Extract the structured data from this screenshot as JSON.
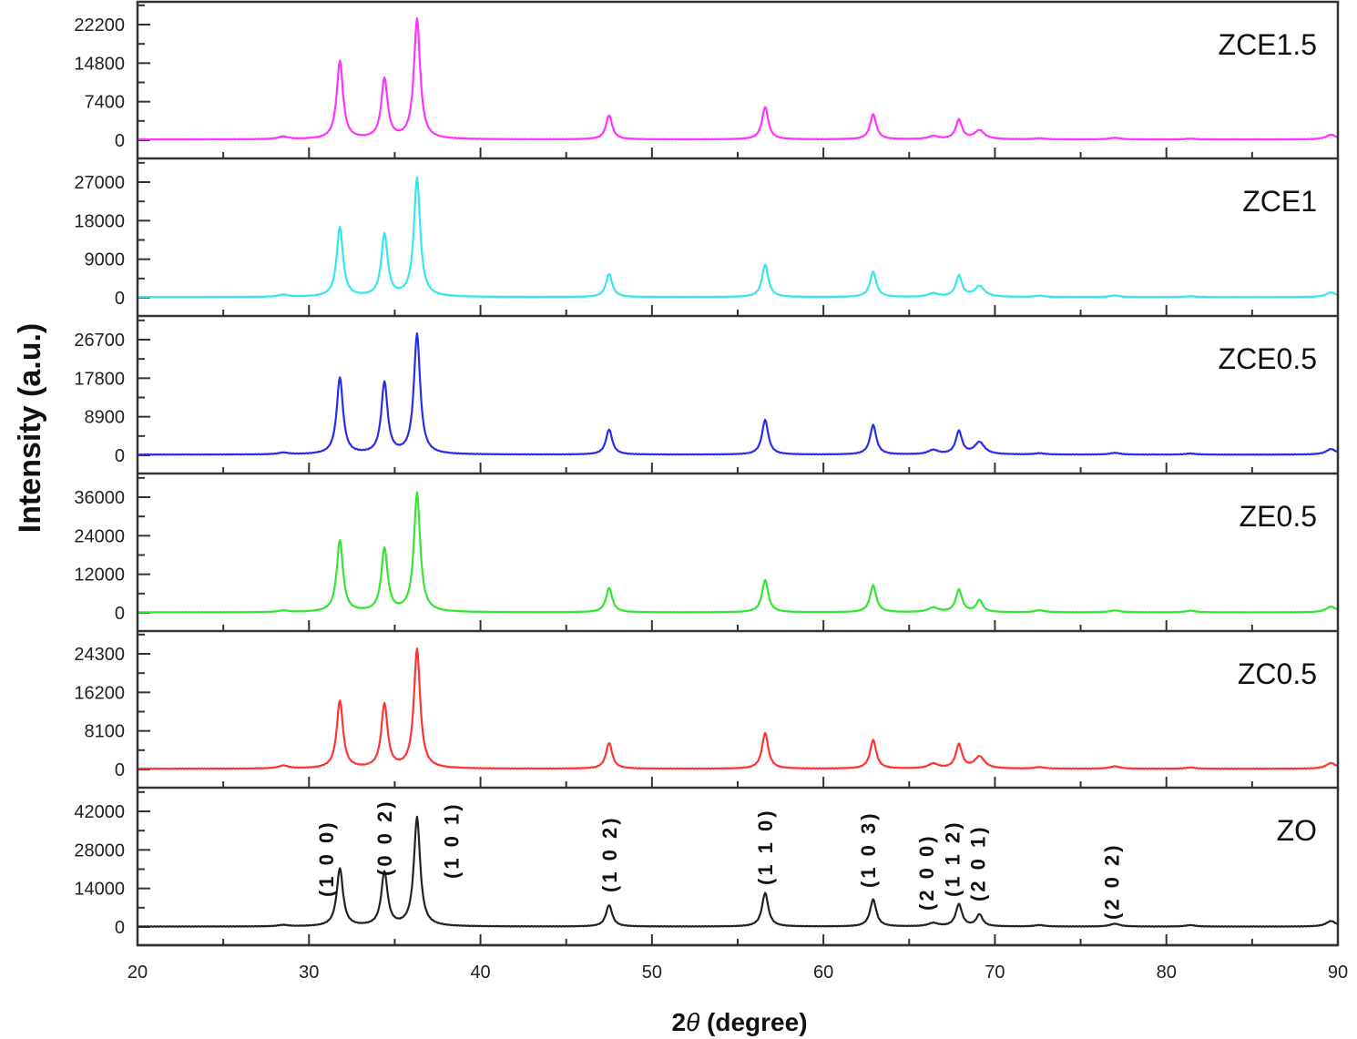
{
  "chart_data": {
    "type": "line",
    "title": "",
    "xlabel": "2θ (degree)",
    "ylabel": "Intensity (a.u.)",
    "xlim": [
      20,
      90
    ],
    "x_ticks": [
      20,
      30,
      40,
      50,
      60,
      70,
      80,
      90
    ],
    "x_minor_step": 5,
    "grid": false,
    "layout": "stacked panels sharing x-axis",
    "peak_positions_2theta": [
      31.8,
      34.4,
      36.3,
      47.5,
      56.6,
      62.9,
      66.4,
      67.9,
      69.1,
      72.6,
      77.0,
      81.4,
      89.6
    ],
    "series": [
      {
        "name": "ZCE1.5",
        "color": "#ff33ff",
        "yticks": [
          0,
          7400,
          14800,
          22200
        ],
        "peaks": [
          {
            "x": 28.5,
            "y": 500
          },
          {
            "x": 31.8,
            "y": 15000
          },
          {
            "x": 34.4,
            "y": 11500
          },
          {
            "x": 36.3,
            "y": 23000
          },
          {
            "x": 47.5,
            "y": 4600
          },
          {
            "x": 56.6,
            "y": 6200
          },
          {
            "x": 62.9,
            "y": 4800
          },
          {
            "x": 66.4,
            "y": 600
          },
          {
            "x": 67.9,
            "y": 3700
          },
          {
            "x": 69.1,
            "y": 1700
          },
          {
            "x": 72.6,
            "y": 200
          },
          {
            "x": 77.0,
            "y": 300
          },
          {
            "x": 81.4,
            "y": 150
          },
          {
            "x": 89.6,
            "y": 900
          }
        ]
      },
      {
        "name": "ZCE1",
        "color": "#33e8e8",
        "yticks": [
          0,
          9000,
          18000,
          27000
        ],
        "peaks": [
          {
            "x": 28.5,
            "y": 500
          },
          {
            "x": 31.8,
            "y": 16300
          },
          {
            "x": 34.4,
            "y": 14500
          },
          {
            "x": 36.3,
            "y": 27700
          },
          {
            "x": 47.5,
            "y": 5400
          },
          {
            "x": 56.6,
            "y": 7600
          },
          {
            "x": 62.9,
            "y": 5900
          },
          {
            "x": 66.4,
            "y": 800
          },
          {
            "x": 67.9,
            "y": 4900
          },
          {
            "x": 69.1,
            "y": 2500
          },
          {
            "x": 72.6,
            "y": 300
          },
          {
            "x": 77.0,
            "y": 350
          },
          {
            "x": 81.4,
            "y": 200
          },
          {
            "x": 89.6,
            "y": 1100
          }
        ]
      },
      {
        "name": "ZCE0.5",
        "color": "#2b2bee",
        "yticks": [
          0,
          8900,
          17800,
          26700
        ],
        "peaks": [
          {
            "x": 28.5,
            "y": 400
          },
          {
            "x": 31.8,
            "y": 17700
          },
          {
            "x": 34.4,
            "y": 16500
          },
          {
            "x": 36.3,
            "y": 27700
          },
          {
            "x": 47.5,
            "y": 5800
          },
          {
            "x": 56.6,
            "y": 8000
          },
          {
            "x": 62.9,
            "y": 6800
          },
          {
            "x": 66.4,
            "y": 1000
          },
          {
            "x": 67.9,
            "y": 5300
          },
          {
            "x": 69.1,
            "y": 2800
          },
          {
            "x": 72.6,
            "y": 300
          },
          {
            "x": 77.0,
            "y": 400
          },
          {
            "x": 81.4,
            "y": 250
          },
          {
            "x": 89.6,
            "y": 1300
          }
        ]
      },
      {
        "name": "ZE0.5",
        "color": "#33e633",
        "yticks": [
          0,
          12000,
          24000,
          36000
        ],
        "peaks": [
          {
            "x": 28.5,
            "y": 500
          },
          {
            "x": 31.8,
            "y": 22300
          },
          {
            "x": 34.4,
            "y": 19600
          },
          {
            "x": 36.3,
            "y": 37000
          },
          {
            "x": 47.5,
            "y": 7600
          },
          {
            "x": 56.6,
            "y": 10000
          },
          {
            "x": 62.9,
            "y": 8400
          },
          {
            "x": 66.4,
            "y": 1400
          },
          {
            "x": 67.9,
            "y": 7000
          },
          {
            "x": 69.1,
            "y": 3700
          },
          {
            "x": 72.6,
            "y": 600
          },
          {
            "x": 77.0,
            "y": 600
          },
          {
            "x": 81.4,
            "y": 500
          },
          {
            "x": 89.6,
            "y": 1800
          }
        ]
      },
      {
        "name": "ZC0.5",
        "color": "#ff3333",
        "yticks": [
          0,
          8100,
          16200,
          24300
        ],
        "peaks": [
          {
            "x": 28.5,
            "y": 600
          },
          {
            "x": 31.8,
            "y": 14200
          },
          {
            "x": 34.4,
            "y": 13400
          },
          {
            "x": 36.3,
            "y": 25000
          },
          {
            "x": 47.5,
            "y": 5400
          },
          {
            "x": 56.6,
            "y": 7500
          },
          {
            "x": 62.9,
            "y": 6000
          },
          {
            "x": 66.4,
            "y": 1000
          },
          {
            "x": 67.9,
            "y": 5000
          },
          {
            "x": 69.1,
            "y": 2500
          },
          {
            "x": 72.6,
            "y": 300
          },
          {
            "x": 77.0,
            "y": 500
          },
          {
            "x": 81.4,
            "y": 250
          },
          {
            "x": 89.6,
            "y": 1200
          }
        ]
      },
      {
        "name": "ZO",
        "color": "#222222",
        "yticks": [
          0,
          14000,
          28000,
          42000
        ],
        "peaks": [
          {
            "x": 28.5,
            "y": 500
          },
          {
            "x": 31.8,
            "y": 21000
          },
          {
            "x": 34.4,
            "y": 19500
          },
          {
            "x": 36.3,
            "y": 39500
          },
          {
            "x": 47.5,
            "y": 7800
          },
          {
            "x": 56.6,
            "y": 12200
          },
          {
            "x": 62.9,
            "y": 9800
          },
          {
            "x": 66.4,
            "y": 1200
          },
          {
            "x": 67.9,
            "y": 8000
          },
          {
            "x": 69.1,
            "y": 4300
          },
          {
            "x": 72.6,
            "y": 500
          },
          {
            "x": 77.0,
            "y": 1000
          },
          {
            "x": 81.4,
            "y": 500
          },
          {
            "x": 89.6,
            "y": 2000
          }
        ]
      }
    ],
    "annotations": [
      {
        "text": "(1 0 0)",
        "x": 31.0,
        "panel": "ZO",
        "rotation": -90
      },
      {
        "text": "(0 0 2)",
        "x": 34.4,
        "panel": "ZO",
        "rotation": -90
      },
      {
        "text": "(1 0 1)",
        "x": 38.3,
        "panel": "ZO",
        "rotation": -90
      },
      {
        "text": "(1 0 2)",
        "x": 47.5,
        "panel": "ZO",
        "rotation": -90
      },
      {
        "text": "(1 1 0)",
        "x": 56.6,
        "panel": "ZO",
        "rotation": -90
      },
      {
        "text": "(1 0 3)",
        "x": 62.6,
        "panel": "ZO",
        "rotation": -90
      },
      {
        "text": "(2 0 0)",
        "x": 66.0,
        "panel": "ZO",
        "rotation": -90
      },
      {
        "text": "(1 1 2)",
        "x": 67.5,
        "panel": "ZO",
        "rotation": -90
      },
      {
        "text": "(2 0 1)",
        "x": 69.0,
        "panel": "ZO",
        "rotation": -90
      },
      {
        "text": "(2 0 2)",
        "x": 76.8,
        "panel": "ZO",
        "rotation": -90
      }
    ]
  },
  "axes": {
    "xlabel_prefix": "2",
    "xlabel_theta": "θ",
    "xlabel_suffix": " (degree)",
    "ylabel": "Intensity (a.u.)"
  }
}
